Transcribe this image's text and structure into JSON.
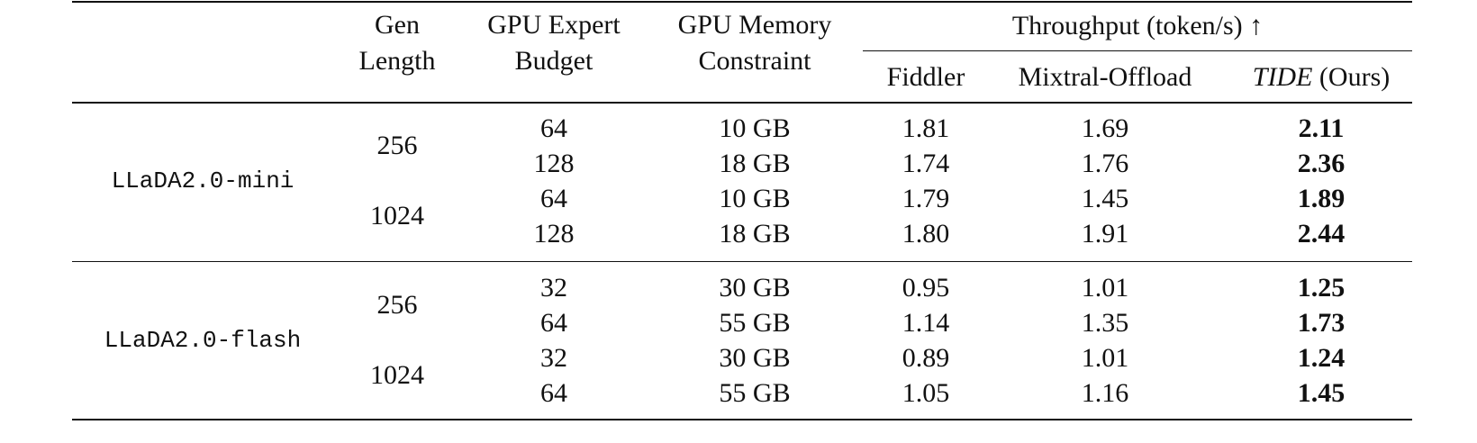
{
  "table": {
    "header": {
      "columns": [
        "Gen Length",
        "GPU Expert Budget",
        "GPU Memory Constraint"
      ],
      "group": "Throughput (token/s) ↑",
      "methods": [
        {
          "name": "Fiddler"
        },
        {
          "name": "Mixtral-Offload"
        },
        {
          "name": "TIDE",
          "suffix": "(Ours)"
        }
      ]
    },
    "models": [
      {
        "name": "LLaDA2.0-mini",
        "groups": [
          {
            "gen_length": "256",
            "rows": [
              [
                "64",
                "10 GB",
                "1.81",
                "1.69",
                "2.11"
              ],
              [
                "128",
                "18 GB",
                "1.74",
                "1.76",
                "2.36"
              ]
            ]
          },
          {
            "gen_length": "1024",
            "rows": [
              [
                "64",
                "10 GB",
                "1.79",
                "1.45",
                "1.89"
              ],
              [
                "128",
                "18 GB",
                "1.80",
                "1.91",
                "2.44"
              ]
            ]
          }
        ]
      },
      {
        "name": "LLaDA2.0-flash",
        "groups": [
          {
            "gen_length": "256",
            "rows": [
              [
                "32",
                "30 GB",
                "0.95",
                "1.01",
                "1.25"
              ],
              [
                "64",
                "55 GB",
                "1.14",
                "1.35",
                "1.73"
              ]
            ]
          },
          {
            "gen_length": "1024",
            "rows": [
              [
                "32",
                "30 GB",
                "0.89",
                "1.01",
                "1.24"
              ],
              [
                "64",
                "55 GB",
                "1.05",
                "1.16",
                "1.45"
              ]
            ]
          }
        ]
      }
    ]
  }
}
